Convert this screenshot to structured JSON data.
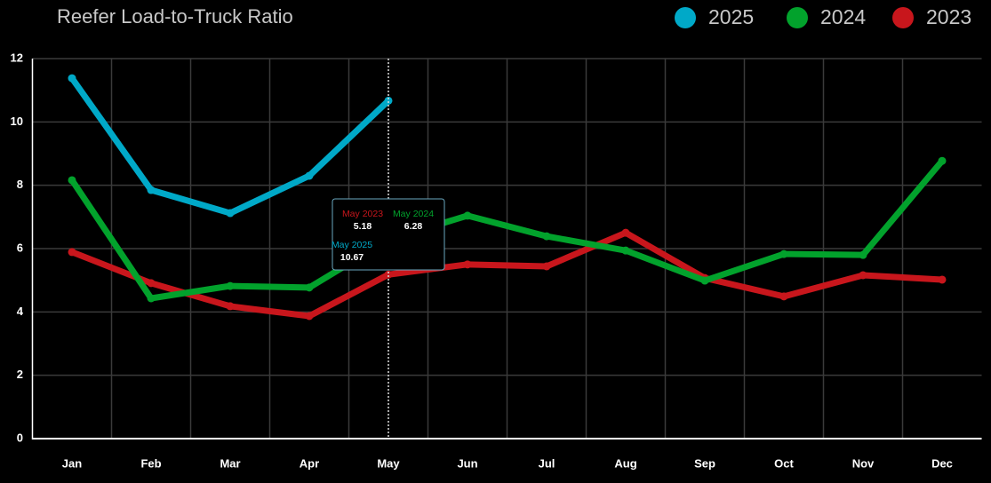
{
  "chart_data": {
    "type": "line",
    "title": "Reefer Load-to-Truck Ratio",
    "categories": [
      "Jan",
      "Feb",
      "Mar",
      "Apr",
      "May",
      "Jun",
      "Jul",
      "Aug",
      "Sep",
      "Oct",
      "Nov",
      "Dec"
    ],
    "series": [
      {
        "name": "2025",
        "color": "#00a9c8",
        "values": [
          11.38,
          7.85,
          7.12,
          8.3,
          10.67,
          null,
          null,
          null,
          null,
          null,
          null,
          null
        ]
      },
      {
        "name": "2024",
        "color": "#02a22c",
        "values": [
          8.16,
          4.43,
          4.82,
          4.77,
          6.28,
          7.04,
          6.39,
          5.94,
          4.99,
          5.83,
          5.8,
          8.77
        ]
      },
      {
        "name": "2023",
        "color": "#c8161c",
        "values": [
          5.89,
          4.91,
          4.18,
          3.87,
          5.18,
          5.5,
          5.44,
          6.5,
          5.07,
          4.49,
          5.16,
          5.02
        ]
      }
    ],
    "ylim": [
      0,
      12
    ],
    "yticks": [
      0,
      2,
      4,
      6,
      8,
      10,
      12
    ],
    "grid": true,
    "legend": "top-right",
    "tooltip": {
      "index": 4,
      "labels": [
        "May 2025",
        "May 2024",
        "May 2023"
      ]
    }
  }
}
